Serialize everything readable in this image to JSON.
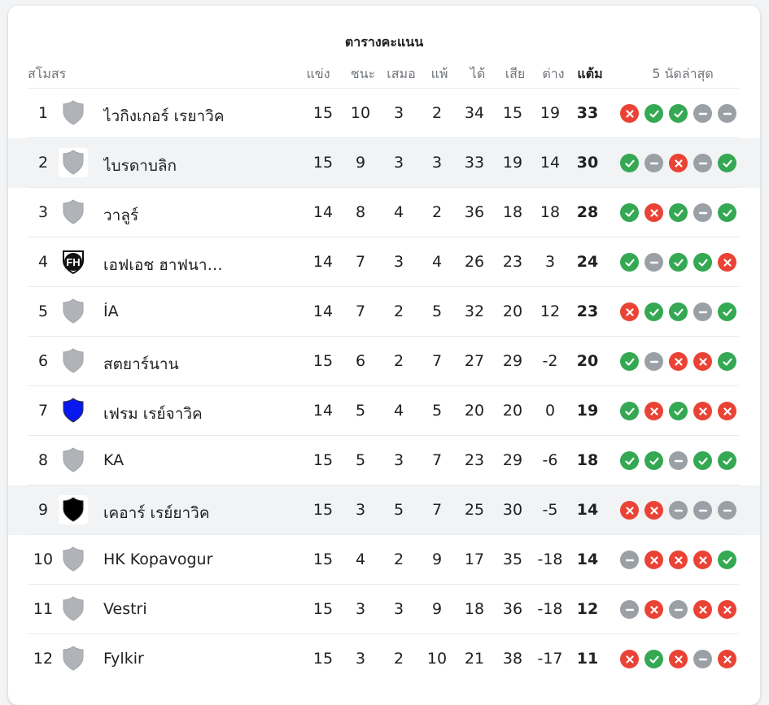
{
  "title": "ตารางคะแนน",
  "headers": {
    "club": "สโมสร",
    "played": "แข่ง",
    "won": "ชนะ",
    "drawn": "เสมอ",
    "lost": "แพ้",
    "gf": "ได้",
    "ga": "เสีย",
    "gd": "ต่าง",
    "points": "แต้ม",
    "form": "5 นัดล่าสุด"
  },
  "colors": {
    "win": "#34a853",
    "loss": "#ea4335",
    "draw": "#9aa0a6",
    "highlight_row": "#f1f3f4"
  },
  "rows": [
    {
      "pos": "1",
      "team": "ไวกิงเกอร์ เรยาวิค",
      "crest": "gray-shield-icon",
      "p": "15",
      "w": "10",
      "d": "3",
      "l": "2",
      "gf": "34",
      "ga": "15",
      "gd": "19",
      "pts": "33",
      "form": [
        "l",
        "w",
        "w",
        "d",
        "d"
      ],
      "highlight": false
    },
    {
      "pos": "2",
      "team": "ไบรดาบลิก",
      "crest": "gray-shield-icon",
      "p": "15",
      "w": "9",
      "d": "3",
      "l": "3",
      "gf": "33",
      "ga": "19",
      "gd": "14",
      "pts": "30",
      "form": [
        "w",
        "d",
        "l",
        "d",
        "w"
      ],
      "highlight": true
    },
    {
      "pos": "3",
      "team": "วาลูร์",
      "crest": "gray-shield-icon",
      "p": "14",
      "w": "8",
      "d": "4",
      "l": "2",
      "gf": "36",
      "ga": "18",
      "gd": "18",
      "pts": "28",
      "form": [
        "w",
        "l",
        "w",
        "d",
        "w"
      ],
      "highlight": false
    },
    {
      "pos": "4",
      "team": "เอฟเอช ฮาฟนา…",
      "crest": "fh-crest-icon",
      "p": "14",
      "w": "7",
      "d": "3",
      "l": "4",
      "gf": "26",
      "ga": "23",
      "gd": "3",
      "pts": "24",
      "form": [
        "w",
        "d",
        "w",
        "w",
        "l"
      ],
      "highlight": false
    },
    {
      "pos": "5",
      "team": "ÍA",
      "crest": "gray-shield-icon",
      "p": "14",
      "w": "7",
      "d": "2",
      "l": "5",
      "gf": "32",
      "ga": "20",
      "gd": "12",
      "pts": "23",
      "form": [
        "l",
        "w",
        "w",
        "d",
        "w"
      ],
      "highlight": false
    },
    {
      "pos": "6",
      "team": "สตยาร์นาน",
      "crest": "gray-shield-icon",
      "p": "15",
      "w": "6",
      "d": "2",
      "l": "7",
      "gf": "27",
      "ga": "29",
      "gd": "-2",
      "pts": "20",
      "form": [
        "w",
        "d",
        "l",
        "l",
        "w"
      ],
      "highlight": false
    },
    {
      "pos": "7",
      "team": "เฟรม เรย์จาวิค",
      "crest": "blue-shield-icon",
      "p": "14",
      "w": "5",
      "d": "4",
      "l": "5",
      "gf": "20",
      "ga": "20",
      "gd": "0",
      "pts": "19",
      "form": [
        "w",
        "l",
        "w",
        "l",
        "l"
      ],
      "highlight": false
    },
    {
      "pos": "8",
      "team": "KA",
      "crest": "gray-shield-icon",
      "p": "15",
      "w": "5",
      "d": "3",
      "l": "7",
      "gf": "23",
      "ga": "29",
      "gd": "-6",
      "pts": "18",
      "form": [
        "w",
        "w",
        "d",
        "w",
        "w"
      ],
      "highlight": false
    },
    {
      "pos": "9",
      "team": "เคอาร์ เรย์ยาวิค",
      "crest": "black-shield-icon",
      "p": "15",
      "w": "3",
      "d": "5",
      "l": "7",
      "gf": "25",
      "ga": "30",
      "gd": "-5",
      "pts": "14",
      "form": [
        "l",
        "l",
        "d",
        "d",
        "d"
      ],
      "highlight": true
    },
    {
      "pos": "10",
      "team": "HK Kopavogur",
      "crest": "gray-shield-icon",
      "p": "15",
      "w": "4",
      "d": "2",
      "l": "9",
      "gf": "17",
      "ga": "35",
      "gd": "-18",
      "pts": "14",
      "form": [
        "d",
        "l",
        "l",
        "l",
        "w"
      ],
      "highlight": false
    },
    {
      "pos": "11",
      "team": "Vestri",
      "crest": "gray-shield-icon",
      "p": "15",
      "w": "3",
      "d": "3",
      "l": "9",
      "gf": "18",
      "ga": "36",
      "gd": "-18",
      "pts": "12",
      "form": [
        "d",
        "l",
        "d",
        "l",
        "l"
      ],
      "highlight": false
    },
    {
      "pos": "12",
      "team": "Fylkir",
      "crest": "gray-shield-icon",
      "p": "15",
      "w": "3",
      "d": "2",
      "l": "10",
      "gf": "21",
      "ga": "38",
      "gd": "-17",
      "pts": "11",
      "form": [
        "l",
        "w",
        "l",
        "d",
        "l"
      ],
      "highlight": false
    }
  ]
}
